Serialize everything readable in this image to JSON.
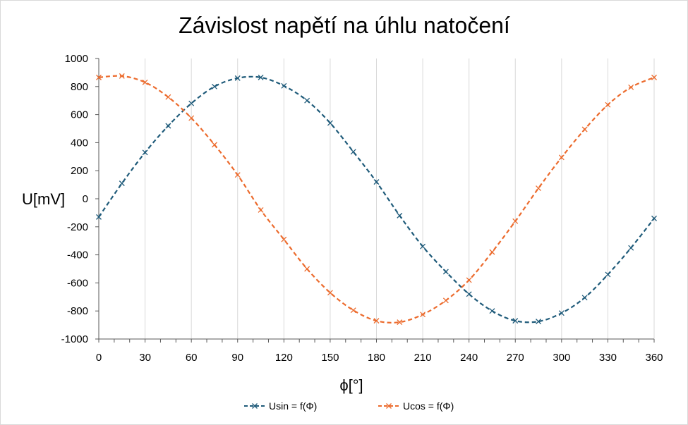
{
  "chart_data": {
    "type": "scatter",
    "title": "Závislost napětí na úhlu natočení",
    "xlabel": "ϕ[°]",
    "ylabel": "U[mV]",
    "xlim": [
      0,
      360
    ],
    "ylim": [
      -1000,
      1000
    ],
    "x_major_step": 30,
    "x_minor_step": 10,
    "y_step": 200,
    "grid": "vertical major gridlines on",
    "legend_position": "bottom",
    "x_tick_labels": [
      "0",
      "30",
      "60",
      "90",
      "120",
      "150",
      "180",
      "210",
      "240",
      "270",
      "300",
      "330",
      "360"
    ],
    "y_tick_labels": [
      "1000",
      "800",
      "600",
      "400",
      "200",
      "0",
      "-200",
      "-400",
      "-600",
      "-800",
      "-1000"
    ],
    "series": [
      {
        "name": "Usin = f(Φ)",
        "color": "#1f5b7a",
        "line": "dashed",
        "marker": "x",
        "x": [
          0,
          15,
          30,
          45,
          60,
          75,
          90,
          105,
          120,
          135,
          150,
          165,
          180,
          195,
          210,
          225,
          240,
          255,
          270,
          285,
          300,
          315,
          330,
          345,
          360
        ],
        "y": [
          -130,
          110,
          330,
          520,
          680,
          800,
          860,
          865,
          805,
          700,
          540,
          335,
          120,
          -120,
          -340,
          -520,
          -680,
          -800,
          -870,
          -875,
          -815,
          -705,
          -540,
          -350,
          -140
        ]
      },
      {
        "name": "Ucos = f(Φ)",
        "color": "#ec6b2d",
        "line": "dashed",
        "marker": "x",
        "x": [
          0,
          15,
          30,
          45,
          60,
          75,
          90,
          105,
          120,
          135,
          150,
          165,
          180,
          195,
          210,
          225,
          240,
          255,
          270,
          285,
          300,
          315,
          330,
          345,
          360
        ],
        "y": [
          865,
          875,
          830,
          725,
          575,
          385,
          170,
          -80,
          -290,
          -500,
          -670,
          -795,
          -870,
          -880,
          -825,
          -725,
          -580,
          -380,
          -160,
          75,
          295,
          495,
          670,
          795,
          865
        ]
      }
    ]
  }
}
